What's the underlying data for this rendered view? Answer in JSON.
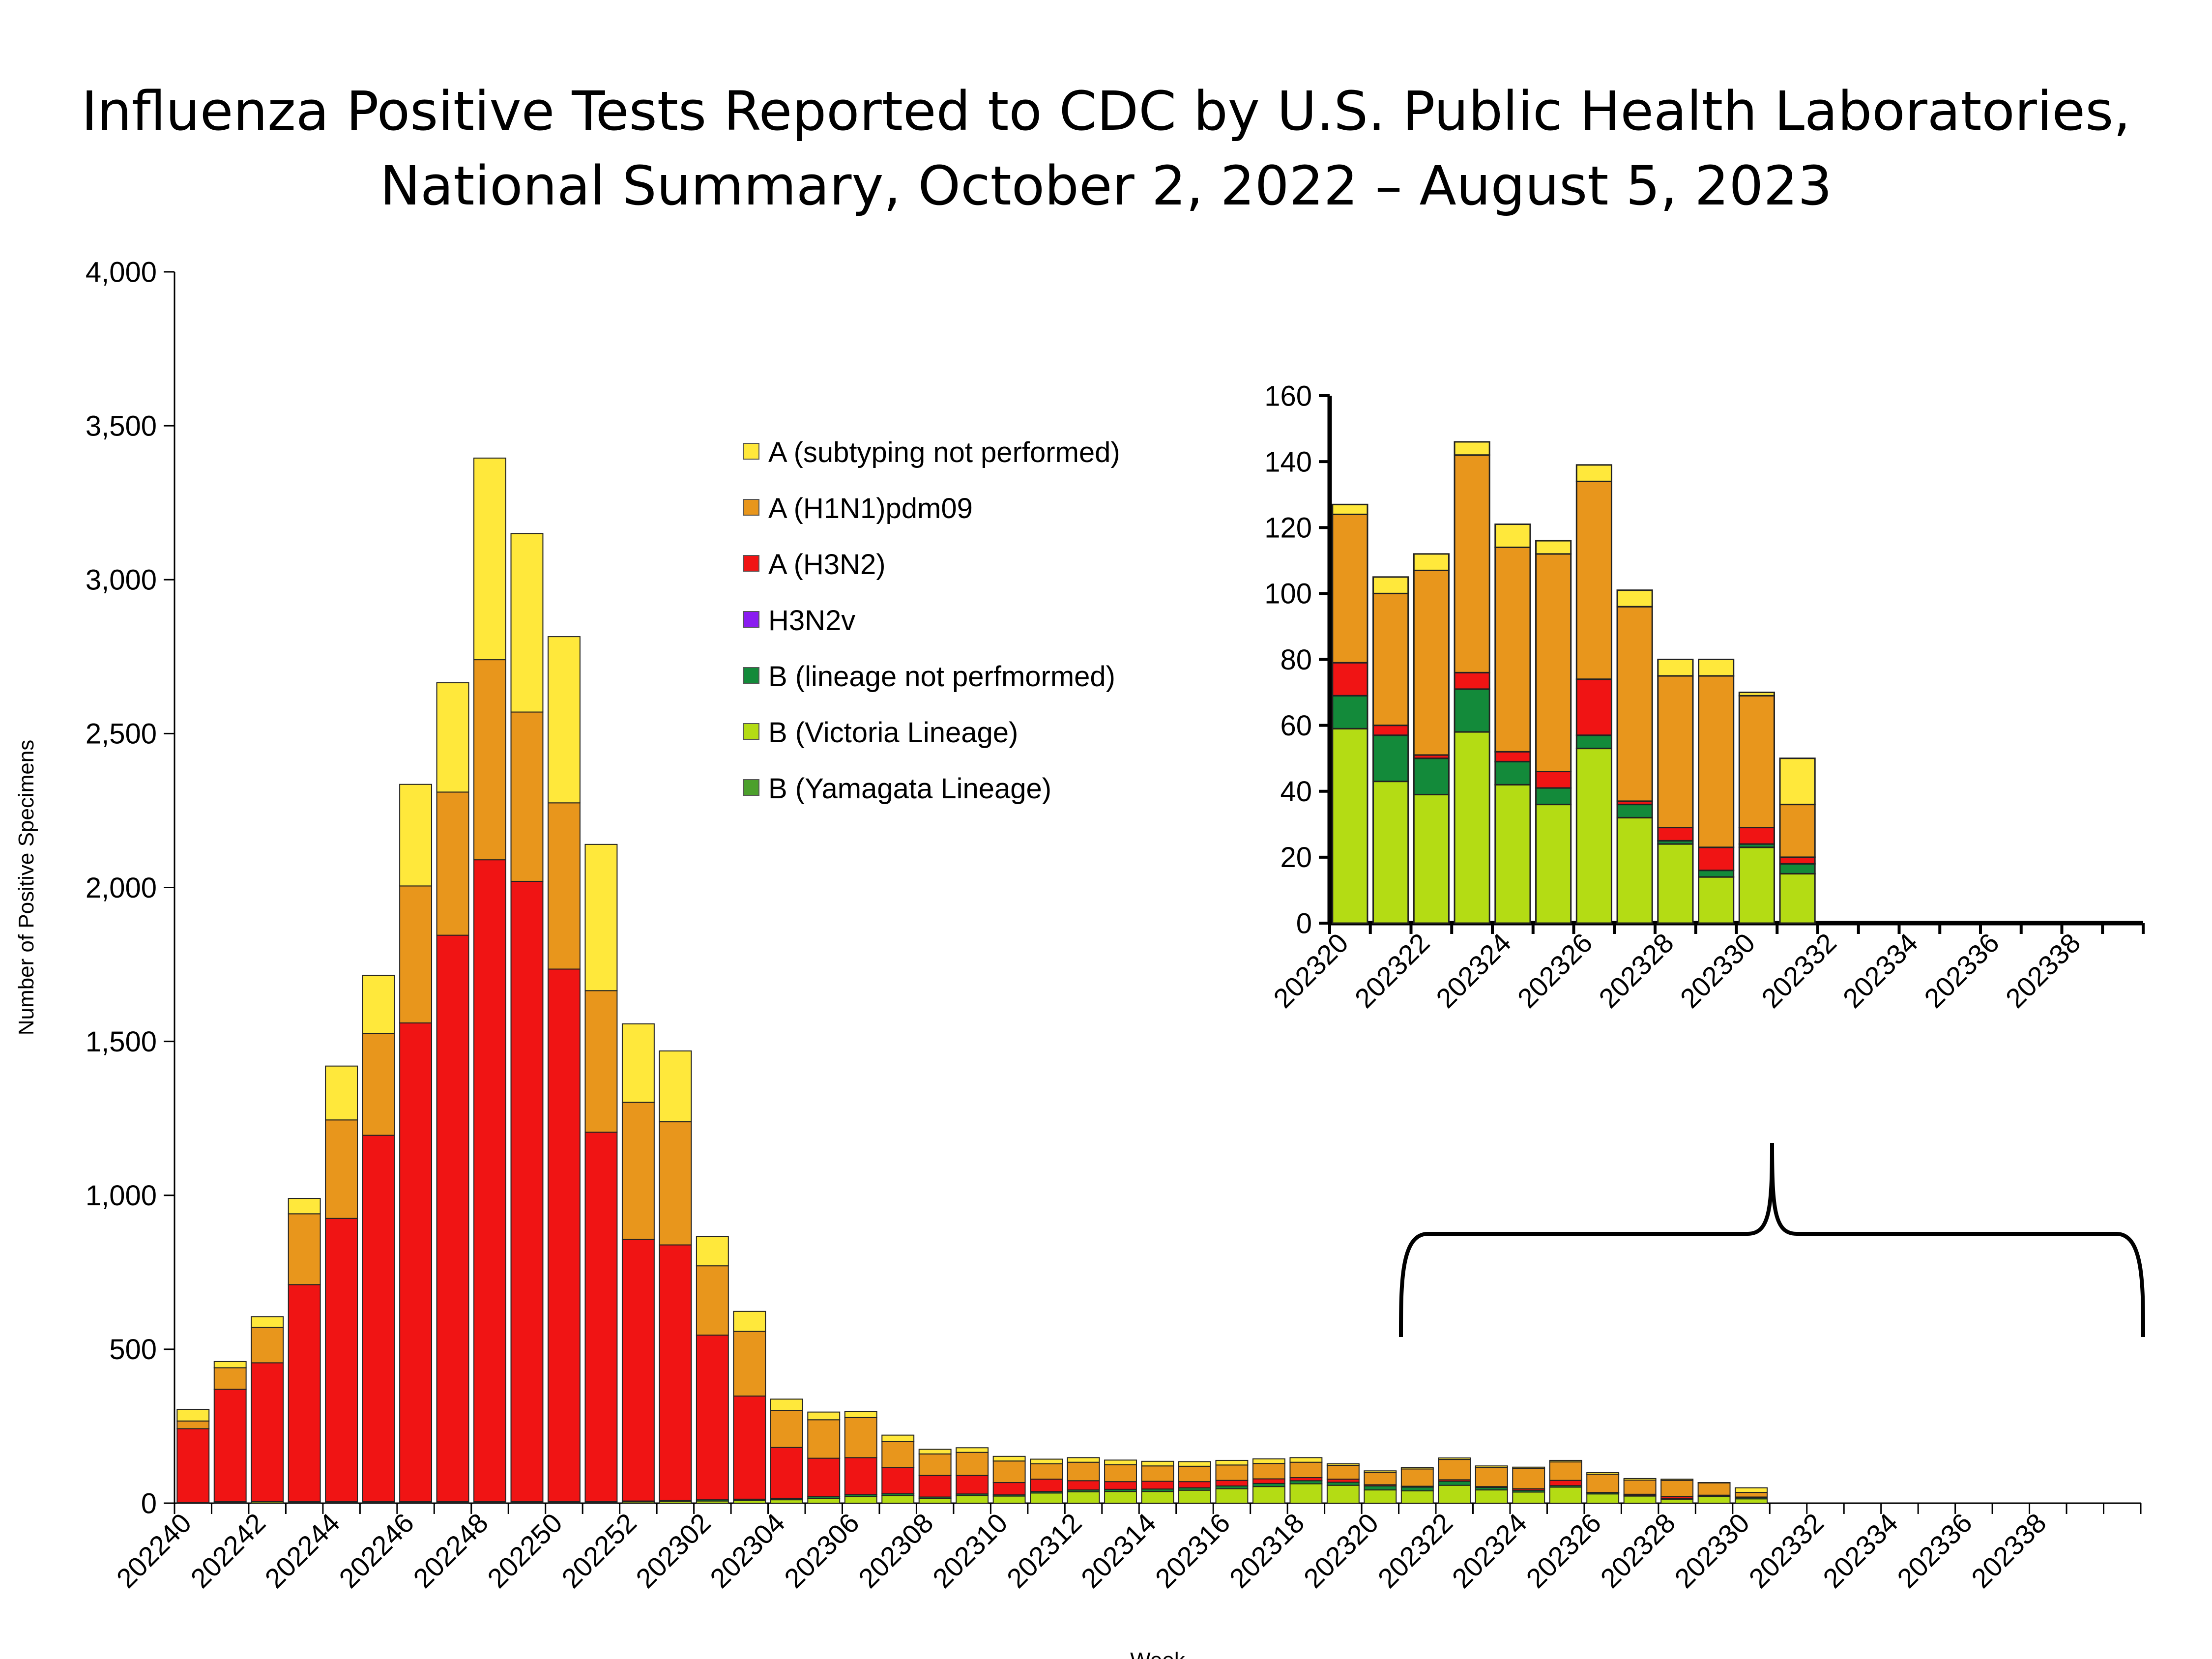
{
  "title": {
    "line1": "Influenza Positive Tests Reported to CDC by U.S. Public Health Laboratories,",
    "line2": "National Summary, October 2, 2022 – August 5, 2023"
  },
  "chart_data": [
    {
      "id": "main",
      "type": "bar",
      "stacked": true,
      "xlabel": "Week",
      "ylabel": "Number of Positive Specimens",
      "ylim": [
        0,
        4000
      ],
      "yticks": [
        0,
        500,
        1000,
        1500,
        2000,
        2500,
        3000,
        3500,
        4000
      ],
      "ytick_labels": [
        "0",
        "500",
        "1,000",
        "1,500",
        "2,000",
        "2,500",
        "3,000",
        "3,500",
        "4,000"
      ],
      "grid": false,
      "week_labels": [
        "202240",
        "202242",
        "202244",
        "202246",
        "202248",
        "202250",
        "202252",
        "202302",
        "202304",
        "202306",
        "202308",
        "202310",
        "202312",
        "202314",
        "202316",
        "202318",
        "202320",
        "202322",
        "202324",
        "202326",
        "202328",
        "202330",
        "202332",
        "202334",
        "202336",
        "202338"
      ],
      "legend": {
        "position": "center",
        "entries": [
          {
            "label": "A (subtyping not performed)",
            "color": "#FFE83B"
          },
          {
            "label": "A (H1N1)pdm09",
            "color": "#E8961C"
          },
          {
            "label": "A (H3N2)",
            "color": "#F01414"
          },
          {
            "label": "H3N2v",
            "color": "#8A1CF0"
          },
          {
            "label": "B (lineage not perfmormed)",
            "color": "#138A3A"
          },
          {
            "label": "B (Victoria Lineage)",
            "color": "#B4DC14"
          },
          {
            "label": "B (Yamagata Lineage)",
            "color": "#4CA02C"
          }
        ]
      },
      "series": [
        {
          "name": "B (Yamagata Lineage)",
          "color": "#4CA02C",
          "values": [
            0,
            0,
            0,
            0,
            0,
            0,
            0,
            0,
            0,
            0,
            0,
            0,
            0,
            0,
            0,
            0,
            0,
            0,
            0,
            0,
            0,
            0,
            0,
            0,
            0,
            0,
            0,
            0,
            0,
            0,
            0,
            0,
            0,
            0,
            0,
            0,
            0,
            0,
            0,
            0,
            0,
            0,
            0,
            0,
            0,
            0,
            0,
            0,
            0,
            0,
            0,
            0,
            0
          ]
        },
        {
          "name": "B (Victoria Lineage)",
          "color": "#B4DC14",
          "values": [
            2,
            3,
            4,
            3,
            3,
            3,
            3,
            3,
            3,
            3,
            3,
            3,
            4,
            6,
            7,
            9,
            11,
            15,
            22,
            25,
            15,
            25,
            23,
            33,
            37,
            38,
            38,
            42,
            47,
            54,
            63,
            58,
            43,
            40,
            58,
            43,
            36,
            52,
            30,
            23,
            13,
            22,
            14,
            0,
            0,
            0,
            0,
            0,
            0,
            0,
            0,
            0,
            0
          ]
        },
        {
          "name": "B (lineage not perfmormed)",
          "color": "#138A3A",
          "values": [
            0,
            2,
            2,
            2,
            2,
            2,
            2,
            2,
            2,
            2,
            2,
            2,
            3,
            3,
            4,
            4,
            5,
            6,
            6,
            6,
            5,
            5,
            4,
            5,
            6,
            7,
            8,
            8,
            9,
            10,
            10,
            10,
            13,
            12,
            13,
            8,
            6,
            5,
            4,
            2,
            2,
            1,
            4,
            0,
            0,
            0,
            0,
            0,
            0,
            0,
            0,
            0,
            0
          ]
        },
        {
          "name": "H3N2v",
          "color": "#8A1CF0",
          "values": [
            0,
            0,
            0,
            0,
            0,
            0,
            0,
            0,
            0,
            0,
            0,
            0,
            0,
            0,
            0,
            0,
            0,
            0,
            0,
            0,
            0,
            0,
            0,
            0,
            0,
            0,
            0,
            0,
            0,
            0,
            0,
            0,
            0,
            0,
            0,
            0,
            0,
            0,
            0,
            0,
            0,
            0,
            0,
            0,
            0,
            0,
            0,
            0,
            0,
            0,
            0,
            0,
            0
          ]
        },
        {
          "name": "A (H3N2)",
          "color": "#F01414",
          "values": [
            240,
            365,
            450,
            705,
            920,
            1190,
            1555,
            1840,
            2085,
            2015,
            1730,
            1200,
            850,
            830,
            535,
            335,
            165,
            125,
            120,
            85,
            70,
            60,
            40,
            40,
            30,
            25,
            25,
            20,
            18,
            15,
            10,
            10,
            4,
            3,
            5,
            3,
            5,
            17,
            1,
            4,
            7,
            3,
            2,
            0,
            0,
            0,
            0,
            0,
            0,
            0,
            0,
            0,
            0
          ]
        },
        {
          "name": "A (H1N1)pdm09",
          "color": "#E8961C",
          "values": [
            25,
            70,
            115,
            230,
            320,
            330,
            445,
            465,
            650,
            550,
            540,
            460,
            445,
            400,
            225,
            210,
            120,
            125,
            130,
            85,
            70,
            75,
            70,
            50,
            60,
            55,
            50,
            50,
            50,
            50,
            50,
            45,
            40,
            56,
            66,
            62,
            66,
            60,
            59,
            46,
            52,
            40,
            15,
            0,
            0,
            0,
            0,
            0,
            0,
            0,
            0,
            0,
            0
          ]
        },
        {
          "name": "A (subtyping not performed)",
          "color": "#FFE83B",
          "values": [
            38,
            20,
            35,
            50,
            175,
            190,
            330,
            355,
            655,
            580,
            540,
            475,
            255,
            230,
            95,
            65,
            37,
            25,
            20,
            20,
            15,
            15,
            15,
            15,
            15,
            15,
            15,
            15,
            15,
            15,
            15,
            5,
            5,
            5,
            5,
            5,
            4,
            5,
            5,
            5,
            4,
            1,
            15,
            0,
            0,
            0,
            0,
            0,
            0,
            0,
            0,
            0,
            0
          ]
        }
      ]
    },
    {
      "id": "inset",
      "type": "bar",
      "stacked": true,
      "xlabel": "",
      "ylabel": "",
      "ylim": [
        0,
        160
      ],
      "yticks": [
        0,
        20,
        40,
        60,
        80,
        100,
        120,
        140,
        160
      ],
      "ytick_labels": [
        "0",
        "20",
        "40",
        "60",
        "80",
        "100",
        "120",
        "140",
        "160"
      ],
      "grid": false,
      "week_labels": [
        "202320",
        "202322",
        "202324",
        "202326",
        "202328",
        "202330",
        "202332",
        "202334",
        "202336",
        "202338"
      ],
      "series": [
        {
          "name": "B (Victoria Lineage)",
          "color": "#B4DC14",
          "values": [
            59,
            43,
            39,
            58,
            42,
            36,
            53,
            32,
            24,
            14,
            23,
            15,
            0,
            0,
            0,
            0,
            0,
            0,
            0,
            0
          ]
        },
        {
          "name": "B (lineage not perfmormed)",
          "color": "#138A3A",
          "values": [
            10,
            14,
            11,
            13,
            7,
            5,
            4,
            4,
            1,
            2,
            1,
            3,
            0,
            0,
            0,
            0,
            0,
            0,
            0,
            0
          ]
        },
        {
          "name": "A (H3N2)",
          "color": "#F01414",
          "values": [
            10,
            3,
            1,
            5,
            3,
            5,
            17,
            1,
            4,
            7,
            5,
            2,
            0,
            0,
            0,
            0,
            0,
            0,
            0,
            0
          ]
        },
        {
          "name": "A (H1N1)pdm09",
          "color": "#E8961C",
          "values": [
            45,
            40,
            56,
            66,
            62,
            66,
            60,
            59,
            46,
            52,
            40,
            16,
            0,
            0,
            0,
            0,
            0,
            0,
            0,
            0
          ]
        },
        {
          "name": "A (subtyping not performed)",
          "color": "#FFE83B",
          "values": [
            3,
            5,
            5,
            4,
            7,
            4,
            5,
            5,
            5,
            5,
            1,
            14,
            0,
            0,
            0,
            0,
            0,
            0,
            0,
            0
          ]
        }
      ]
    }
  ]
}
